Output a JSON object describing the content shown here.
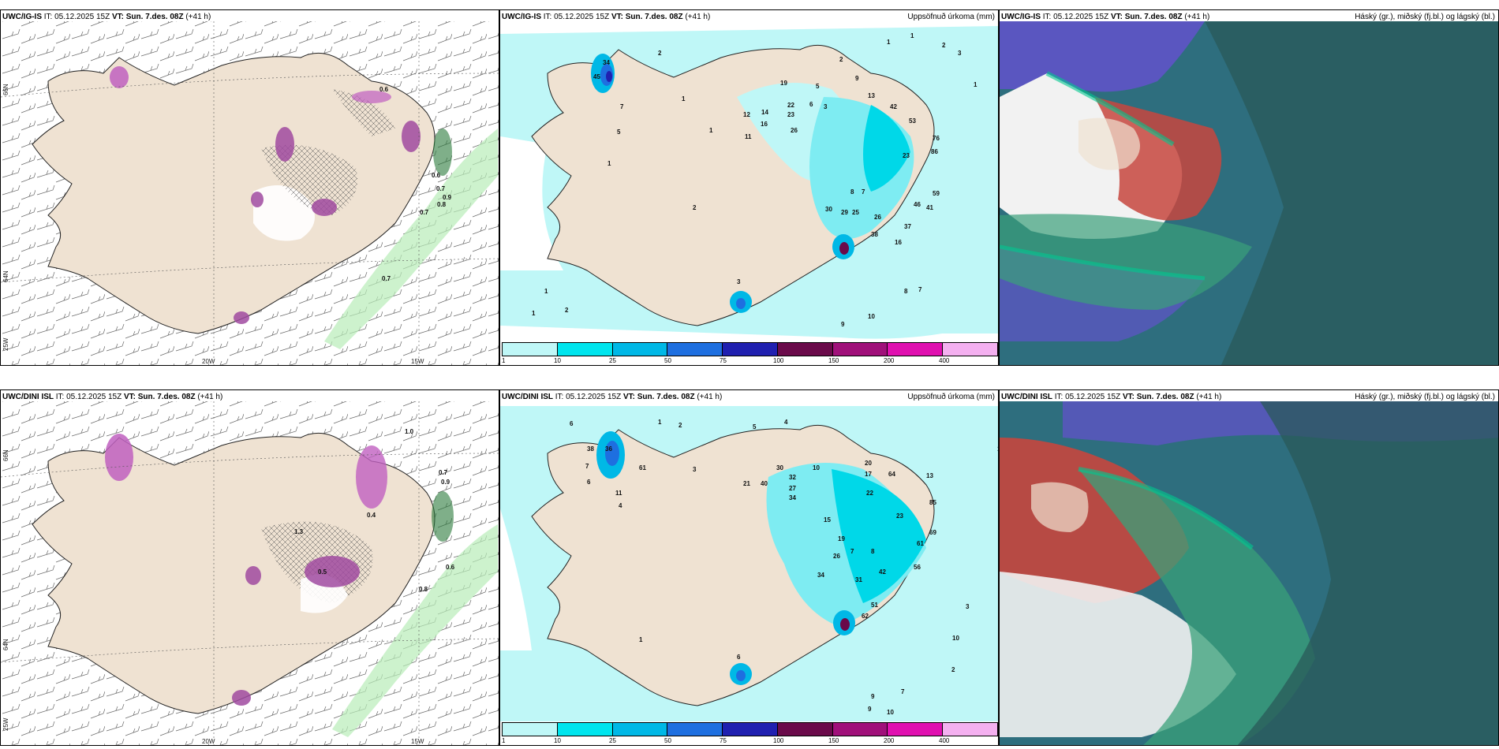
{
  "rows": [
    {
      "model": "UWC/IG-IS",
      "it_label": "IT:",
      "it_value": "05.12.2025 15Z",
      "vt_label": "VT:",
      "vt_value": "Sun. 7.des. 08Z",
      "lead": "(+41 h)"
    },
    {
      "model": "UWC/DINI ISL",
      "it_label": "IT:",
      "it_value": "05.12.2025 15Z",
      "vt_label": "VT:",
      "vt_value": "Sun. 7.des. 08Z",
      "lead": "(+41 h)"
    }
  ],
  "precip_title": "Uppsöfnuð úrkoma (mm)",
  "cloud_title": "Háský (gr.), miðský (fj.bl.) og lágský (bl.)",
  "axis_labels": {
    "lat66": "66N",
    "lat64": "64N",
    "lon25": "25W",
    "lon20": "20W",
    "lon15": "15W"
  },
  "colorbar": {
    "ticks": [
      "1",
      "10",
      "25",
      "50",
      "75",
      "100",
      "150",
      "200",
      "400"
    ],
    "colors": [
      "#bff7f7",
      "#00e5ee",
      "#00b8e6",
      "#1e6fe0",
      "#2020b0",
      "#6a0a4a",
      "#a0107a",
      "#e010b0",
      "#f4b0f0"
    ]
  },
  "precip_values_top": [
    "34",
    "45",
    "2",
    "1",
    "7",
    "5",
    "1",
    "1",
    "2",
    "12",
    "14",
    "16",
    "11",
    "19",
    "22",
    "23",
    "26",
    "5",
    "3",
    "6",
    "2",
    "9",
    "13",
    "42",
    "53",
    "76",
    "86",
    "59",
    "46",
    "41",
    "30",
    "29",
    "25",
    "26",
    "37",
    "38",
    "16",
    "23",
    "8",
    "7",
    "1",
    "1",
    "2",
    "3",
    "8",
    "9",
    "10",
    "7",
    "3",
    "2",
    "1",
    "1",
    "1"
  ],
  "precip_values_bottom": [
    "6",
    "1",
    "2",
    "5",
    "4",
    "38",
    "36",
    "61",
    "7",
    "6",
    "11",
    "4",
    "3",
    "21",
    "40",
    "30",
    "32",
    "27",
    "34",
    "10",
    "20",
    "17",
    "64",
    "13",
    "23",
    "22",
    "85",
    "69",
    "61",
    "56",
    "42",
    "31",
    "34",
    "26",
    "19",
    "15",
    "7",
    "8",
    "51",
    "62",
    "1",
    "6",
    "9",
    "10",
    "7",
    "2",
    "1",
    "2",
    "3",
    "10",
    "9"
  ],
  "wind_values_top": [
    "0.6",
    "0.7",
    "0.8",
    "0.9",
    "0.7",
    "0.6",
    "0.7"
  ],
  "wind_values_bottom": [
    "1.0",
    "0.7",
    "0.9",
    "0.6",
    "0.8",
    "0.4",
    "0.5",
    "1.3"
  ]
}
